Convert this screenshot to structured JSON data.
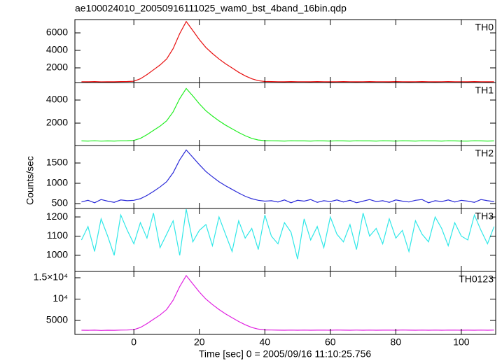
{
  "chart_data": [
    {
      "type": "line",
      "title": "ae100024010_20050916111025_wam0_bst_4band_16bin.qdp",
      "label": "TH0",
      "color": "#e81010",
      "x": [
        -16,
        -14,
        -12,
        -10,
        -8,
        -6,
        -4,
        -2,
        0,
        2,
        4,
        6,
        8,
        10,
        12,
        14,
        16,
        18,
        20,
        22,
        24,
        26,
        28,
        30,
        32,
        34,
        36,
        38,
        40,
        42,
        44,
        46,
        48,
        50,
        52,
        54,
        56,
        58,
        60,
        62,
        64,
        66,
        68,
        70,
        72,
        74,
        76,
        78,
        80,
        82,
        84,
        86,
        88,
        90,
        92,
        94,
        96,
        98,
        100,
        102,
        104,
        106,
        108,
        110
      ],
      "values": [
        420,
        410,
        430,
        400,
        420,
        410,
        430,
        440,
        470,
        750,
        1230,
        1780,
        2330,
        3020,
        4200,
        5920,
        7300,
        6270,
        5230,
        4330,
        3640,
        3020,
        2470,
        1990,
        1500,
        1090,
        750,
        540,
        440,
        430,
        420,
        410,
        430,
        420,
        420,
        410,
        430,
        420,
        410,
        420,
        430,
        420,
        410,
        420,
        430,
        420,
        420,
        410,
        430,
        420,
        410,
        420,
        430,
        420,
        410,
        420,
        430,
        420,
        420,
        410,
        430,
        420,
        410,
        420
      ],
      "xlim": [
        -18,
        110.5
      ],
      "xticks": [
        0,
        20,
        40,
        60,
        80,
        100
      ],
      "ylim": [
        320,
        7520
      ],
      "yticks": [
        2000,
        4000,
        6000
      ]
    },
    {
      "type": "line",
      "label": "TH1",
      "color": "#22ee22",
      "x": [
        -16,
        -14,
        -12,
        -10,
        -8,
        -6,
        -4,
        -2,
        0,
        2,
        4,
        6,
        8,
        10,
        12,
        14,
        16,
        18,
        20,
        22,
        24,
        26,
        28,
        30,
        32,
        34,
        36,
        38,
        40,
        42,
        44,
        46,
        48,
        50,
        52,
        54,
        56,
        58,
        60,
        62,
        64,
        66,
        68,
        70,
        72,
        74,
        76,
        78,
        80,
        82,
        84,
        86,
        88,
        90,
        92,
        94,
        96,
        98,
        100,
        102,
        104,
        106,
        108,
        110
      ],
      "values": [
        460,
        450,
        470,
        440,
        460,
        450,
        470,
        480,
        500,
        680,
        1000,
        1370,
        1740,
        2200,
        2980,
        4130,
        5000,
        4360,
        3670,
        3070,
        2610,
        2200,
        1830,
        1510,
        1190,
        910,
        680,
        540,
        480,
        470,
        460,
        450,
        470,
        460,
        460,
        450,
        470,
        460,
        450,
        470,
        460,
        450,
        470,
        460,
        460,
        450,
        470,
        460,
        450,
        470,
        460,
        450,
        470,
        460,
        460,
        450,
        470,
        460,
        450,
        450,
        470,
        460,
        450,
        460
      ],
      "xlim": [
        -18,
        110.5
      ],
      "xticks": [
        0,
        20,
        40,
        60,
        80,
        100
      ],
      "ylim": [
        60,
        5515
      ],
      "yticks": [
        2000,
        4000
      ]
    },
    {
      "type": "line",
      "label": "TH2",
      "ylabel": "Counts/sec",
      "color": "#2a2ad8",
      "x": [
        -16,
        -14,
        -12,
        -10,
        -8,
        -6,
        -4,
        -2,
        0,
        2,
        4,
        6,
        8,
        10,
        12,
        14,
        16,
        18,
        20,
        22,
        24,
        26,
        28,
        30,
        32,
        34,
        36,
        38,
        40,
        42,
        44,
        46,
        48,
        50,
        52,
        54,
        56,
        58,
        60,
        62,
        64,
        66,
        68,
        70,
        72,
        74,
        76,
        78,
        80,
        82,
        84,
        86,
        88,
        90,
        92,
        94,
        96,
        98,
        100,
        102,
        104,
        106,
        108,
        110
      ],
      "values": [
        540,
        580,
        520,
        600,
        560,
        530,
        590,
        570,
        580,
        620,
        700,
        800,
        910,
        1040,
        1260,
        1580,
        1820,
        1640,
        1460,
        1290,
        1160,
        1040,
        940,
        850,
        760,
        680,
        620,
        580,
        560,
        570,
        540,
        590,
        520,
        580,
        560,
        600,
        530,
        570,
        550,
        590,
        540,
        580,
        520,
        560,
        600,
        550,
        570,
        530,
        590,
        560,
        540,
        580,
        600,
        520,
        570,
        550,
        590,
        540,
        580,
        560,
        530,
        600,
        570,
        550
      ],
      "xlim": [
        -18,
        110.5
      ],
      "xticks": [
        0,
        20,
        40,
        60,
        80,
        100
      ],
      "ylim": [
        379,
        1931
      ],
      "yticks": [
        500,
        1000,
        1500
      ]
    },
    {
      "type": "line",
      "label": "TH3",
      "color": "#30e8e8",
      "x": [
        -16,
        -14,
        -12,
        -10,
        -8,
        -6,
        -4,
        -2,
        0,
        2,
        4,
        6,
        8,
        10,
        12,
        14,
        16,
        18,
        20,
        22,
        24,
        26,
        28,
        30,
        32,
        34,
        36,
        38,
        40,
        42,
        44,
        46,
        48,
        50,
        52,
        54,
        56,
        58,
        60,
        62,
        64,
        66,
        68,
        70,
        72,
        74,
        76,
        78,
        80,
        82,
        84,
        86,
        88,
        90,
        92,
        94,
        96,
        98,
        100,
        102,
        104,
        106,
        108,
        110
      ],
      "values": [
        1080,
        1150,
        1020,
        1190,
        1100,
        1000,
        1210,
        1130,
        1060,
        1170,
        1090,
        1220,
        1040,
        1110,
        1180,
        1000,
        1240,
        1070,
        1130,
        1160,
        1050,
        1200,
        1110,
        1020,
        1180,
        1090,
        1140,
        1030,
        1210,
        1100,
        1060,
        1170,
        1120,
        980,
        1190,
        1080,
        1150,
        1040,
        1200,
        1110,
        1070,
        1160,
        1030,
        1220,
        1100,
        1140,
        1060,
        1190,
        1090,
        1130,
        1020,
        1180,
        1110,
        1070,
        1200,
        1140,
        1050,
        1170,
        1100,
        1080,
        1210,
        1130,
        1060,
        1150
      ],
      "xlim": [
        -18,
        110.5
      ],
      "xticks": [
        0,
        20,
        40,
        60,
        80,
        100
      ],
      "ylim": [
        916,
        1244
      ],
      "yticks": [
        1000,
        1100,
        1200
      ]
    },
    {
      "type": "line",
      "label": "TH0123",
      "xlabel": "Time [sec] 0 = 2005/09/16 11:10:25.756",
      "color": "#e020e0",
      "x": [
        -16,
        -14,
        -12,
        -10,
        -8,
        -6,
        -4,
        -2,
        0,
        2,
        4,
        6,
        8,
        10,
        12,
        14,
        16,
        18,
        20,
        22,
        24,
        26,
        28,
        30,
        32,
        34,
        36,
        38,
        40,
        42,
        44,
        46,
        48,
        50,
        52,
        54,
        56,
        58,
        60,
        62,
        64,
        66,
        68,
        70,
        72,
        74,
        76,
        78,
        80,
        82,
        84,
        86,
        88,
        90,
        92,
        94,
        96,
        98,
        100,
        102,
        104,
        106,
        108,
        110
      ],
      "values": [
        2700,
        2680,
        2720,
        2660,
        2710,
        2690,
        2730,
        2750,
        2830,
        3340,
        4240,
        5260,
        6280,
        7560,
        9740,
        12940,
        15500,
        13580,
        11660,
        10000,
        8720,
        7560,
        6540,
        5640,
        4750,
        3980,
        3340,
        2960,
        2770,
        2750,
        2720,
        2700,
        2740,
        2710,
        2730,
        2700,
        2720,
        2740,
        2710,
        2750,
        2720,
        2700,
        2740,
        2710,
        2730,
        2700,
        2720,
        2740,
        2710,
        2750,
        2720,
        2700,
        2740,
        2710,
        2730,
        2700,
        2720,
        2740,
        2710,
        2720,
        2700,
        2740,
        2710,
        2730
      ],
      "xlim": [
        -18,
        110.5
      ],
      "xticks": [
        0,
        20,
        40,
        60,
        80,
        100
      ],
      "ylim": [
        1720,
        16475
      ],
      "yticks": [
        5000,
        {
          "value": 10000,
          "label": "10⁴"
        },
        {
          "value": 15000,
          "label": "1.5×10⁴"
        }
      ]
    }
  ]
}
